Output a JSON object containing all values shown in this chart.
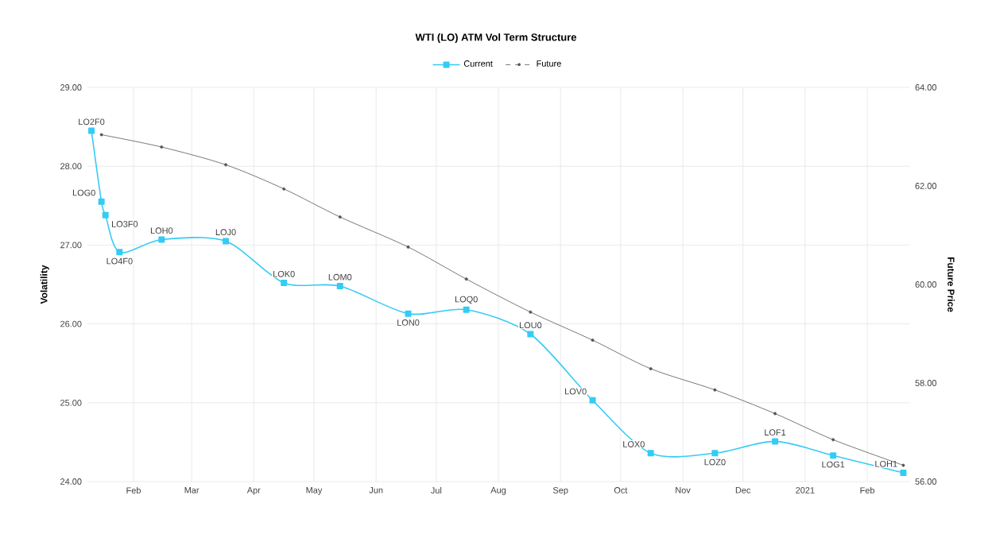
{
  "chart_data": {
    "type": "line",
    "title": "WTI (LO) ATM Vol Term Structure",
    "ylabel": "Volatility",
    "y2label": "Future Price",
    "xlim": [
      "2020-01-09",
      "2021-02-22"
    ],
    "xticks": [
      {
        "value": "2020-02-01",
        "label": "Feb"
      },
      {
        "value": "2020-03-01",
        "label": "Mar"
      },
      {
        "value": "2020-04-01",
        "label": "Apr"
      },
      {
        "value": "2020-05-01",
        "label": "May"
      },
      {
        "value": "2020-06-01",
        "label": "Jun"
      },
      {
        "value": "2020-07-01",
        "label": "Jul"
      },
      {
        "value": "2020-08-01",
        "label": "Aug"
      },
      {
        "value": "2020-09-01",
        "label": "Sep"
      },
      {
        "value": "2020-10-01",
        "label": "Oct"
      },
      {
        "value": "2020-11-01",
        "label": "Nov"
      },
      {
        "value": "2020-12-01",
        "label": "Dec"
      },
      {
        "value": "2021-01-01",
        "label": "2021"
      },
      {
        "value": "2021-02-01",
        "label": "Feb"
      }
    ],
    "ylim": [
      24,
      29
    ],
    "yticks": [
      {
        "value": 24,
        "label": "24.00"
      },
      {
        "value": 25,
        "label": "25.00"
      },
      {
        "value": 26,
        "label": "26.00"
      },
      {
        "value": 27,
        "label": "27.00"
      },
      {
        "value": 28,
        "label": "28.00"
      },
      {
        "value": 29,
        "label": "29.00"
      }
    ],
    "y2lim": [
      56,
      64
    ],
    "y2ticks": [
      {
        "value": 56,
        "label": "56.00"
      },
      {
        "value": 58,
        "label": "58.00"
      },
      {
        "value": 60,
        "label": "60.00"
      },
      {
        "value": 62,
        "label": "62.00"
      },
      {
        "value": 64,
        "label": "64.00"
      }
    ],
    "grid": true,
    "legend": "top",
    "series": [
      {
        "name": "Current",
        "color": "#33ccf5",
        "marker": "square",
        "x": [
          "2020-01-11",
          "2020-01-16",
          "2020-01-18",
          "2020-01-25",
          "2020-02-15",
          "2020-03-18",
          "2020-04-16",
          "2020-05-14",
          "2020-06-17",
          "2020-07-16",
          "2020-08-17",
          "2020-09-17",
          "2020-10-16",
          "2020-11-17",
          "2020-12-17",
          "2021-01-15",
          "2021-02-19"
        ],
        "values": [
          28.45,
          27.55,
          27.38,
          26.91,
          27.07,
          27.05,
          26.52,
          26.48,
          26.13,
          26.18,
          25.87,
          25.03,
          24.36,
          24.36,
          24.51,
          24.33,
          24.11
        ]
      },
      {
        "name": "Future",
        "color": "#555555",
        "marker": "circle",
        "axis": "y2",
        "x": [
          "2020-01-16",
          "2020-02-15",
          "2020-03-18",
          "2020-04-16",
          "2020-05-14",
          "2020-06-17",
          "2020-07-16",
          "2020-08-17",
          "2020-09-17",
          "2020-10-16",
          "2020-11-17",
          "2020-12-17",
          "2021-01-15",
          "2021-02-19"
        ],
        "values": [
          63.04,
          62.79,
          62.43,
          61.94,
          61.37,
          60.76,
          60.11,
          59.44,
          58.87,
          58.29,
          57.86,
          57.38,
          56.85,
          56.33
        ]
      }
    ],
    "annotations": [
      {
        "text": "LO2F0",
        "x": "2020-01-11",
        "y": 28.45
      },
      {
        "text": "LOG0",
        "x": "2020-01-16",
        "y": 27.55
      },
      {
        "text": "LO3F0",
        "x": "2020-01-18",
        "y": 27.38
      },
      {
        "text": "LO4F0",
        "x": "2020-01-25",
        "y": 26.91
      },
      {
        "text": "LOH0",
        "x": "2020-02-15",
        "y": 27.07
      },
      {
        "text": "LOJ0",
        "x": "2020-03-18",
        "y": 27.05
      },
      {
        "text": "LOK0",
        "x": "2020-04-16",
        "y": 26.52
      },
      {
        "text": "LOM0",
        "x": "2020-05-14",
        "y": 26.48
      },
      {
        "text": "LON0",
        "x": "2020-06-17",
        "y": 26.13
      },
      {
        "text": "LOQ0",
        "x": "2020-07-16",
        "y": 26.18
      },
      {
        "text": "LOU0",
        "x": "2020-08-17",
        "y": 25.87
      },
      {
        "text": "LOV0",
        "x": "2020-09-17",
        "y": 25.03
      },
      {
        "text": "LOX0",
        "x": "2020-10-16",
        "y": 24.36
      },
      {
        "text": "LOZ0",
        "x": "2020-11-17",
        "y": 24.36
      },
      {
        "text": "LOF1",
        "x": "2020-12-17",
        "y": 24.51
      },
      {
        "text": "LOG1",
        "x": "2021-01-15",
        "y": 24.33
      },
      {
        "text": "LOH1",
        "x": "2021-02-19",
        "y": 24.11
      }
    ]
  }
}
